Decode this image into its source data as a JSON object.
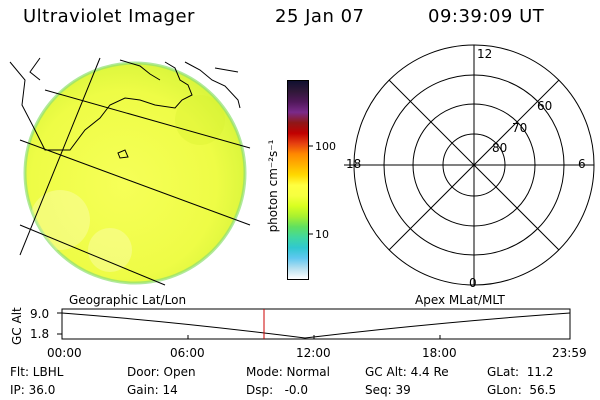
{
  "header": {
    "title": "Ultraviolet Imager",
    "date": "25 Jan 07",
    "time": "09:39:09 UT"
  },
  "colorbar": {
    "label": "photon cm⁻²s⁻¹",
    "ticks": [
      "100",
      "10"
    ],
    "colors": [
      "#101030",
      "#301838",
      "#50185a",
      "#7a2a8a",
      "#8e1818",
      "#c00000",
      "#e64010",
      "#ff8800",
      "#ffb000",
      "#ffd800",
      "#ffff40",
      "#f6ff40",
      "#d8ff20",
      "#a8f030",
      "#60e060",
      "#40d8a0",
      "#30c8d0",
      "#60c8f0",
      "#b8e0f0",
      "#ffffff"
    ]
  },
  "polar": {
    "mlt_labels": {
      "top": "12",
      "right": "6",
      "bottom": "0",
      "left": "18"
    },
    "lat_labels": [
      "60",
      "70",
      "80"
    ]
  },
  "timeline": {
    "left_title": "Geographic Lat/Lon",
    "right_title": "Apex MLat/MLT",
    "ylabel": "GC Alt",
    "yticks": [
      "9.0",
      "1.8"
    ],
    "xticks": [
      "00:00",
      "06:00",
      "12:00",
      "18:00",
      "23:59"
    ],
    "marker_time": "09:39",
    "marker_color": "#cc0000"
  },
  "info": {
    "col1": [
      "Flt: LBHL",
      "IP: 36.0"
    ],
    "col2": [
      "Door: Open",
      "Gain: 14"
    ],
    "col3": [
      "Mode: Normal",
      "Dsp:   -0.0"
    ],
    "col4": [
      "GC Alt: 4.4 Re",
      "Seq: 39"
    ],
    "col5": [
      "GLat:  11.2",
      "GLon:  56.5"
    ]
  }
}
